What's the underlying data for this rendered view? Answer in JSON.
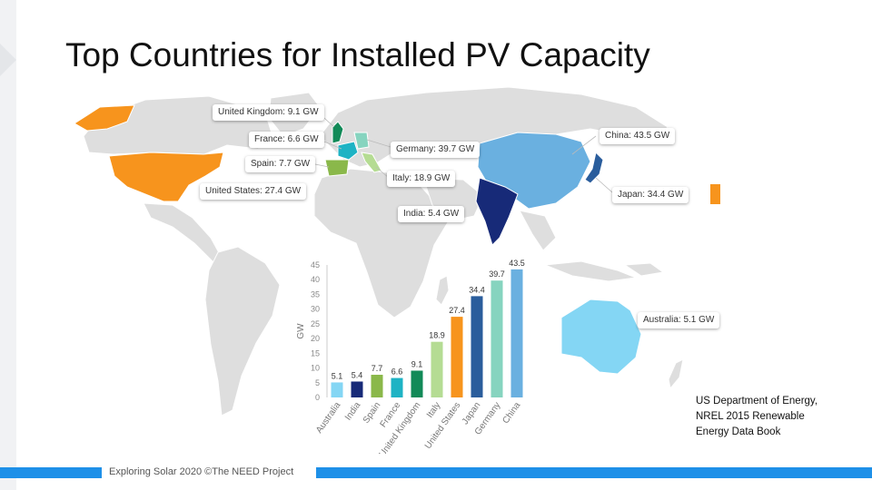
{
  "title": "Top Countries for Installed PV Capacity",
  "colors": {
    "footer_blue": "#1e90e8",
    "legend_orange": "#f7941d"
  },
  "callouts": {
    "united_kingdom": "United Kingdom: 9.1 GW",
    "france": "France: 6.6 GW",
    "spain": "Spain: 7.7 GW",
    "united_states": "United States: 27.4 GW",
    "germany": "Germany: 39.7 GW",
    "italy": "Italy: 18.9 GW",
    "india": "India: 5.4 GW",
    "china": "China: 43.5 GW",
    "japan": "Japan: 34.4 GW",
    "australia": "Australia: 5.1 GW"
  },
  "source": {
    "line1": "US Department of Energy,",
    "line2": "NREL 2015 Renewable",
    "line3": "Energy Data Book"
  },
  "footer": {
    "text": "Exploring Solar 2020 ©The NEED Project"
  },
  "chart_data": {
    "type": "bar",
    "categories": [
      "Australia",
      "India",
      "Spain",
      "France",
      "United Kingdom",
      "Italy",
      "United States",
      "Japan",
      "Germany",
      "China"
    ],
    "values": [
      5.1,
      5.4,
      7.7,
      6.6,
      9.1,
      18.9,
      27.4,
      34.4,
      39.7,
      43.5
    ],
    "data_labels": [
      "5.1",
      "5.4",
      "7.7",
      "6.6",
      "9.1",
      "18.9",
      "27.4",
      "34.4",
      "39.7",
      "43.5"
    ],
    "colors": [
      "#84d6f4",
      "#172a78",
      "#8ab84a",
      "#1eb3c4",
      "#128a58",
      "#b5dc93",
      "#f7941d",
      "#2a5d9c",
      "#86d4bf",
      "#6ab0e0"
    ],
    "ylabel": "GW",
    "ylim": [
      0,
      45
    ],
    "yticks": [
      0,
      5,
      10,
      15,
      20,
      25,
      30,
      35,
      40,
      45
    ],
    "grid": false,
    "legend": "none"
  }
}
